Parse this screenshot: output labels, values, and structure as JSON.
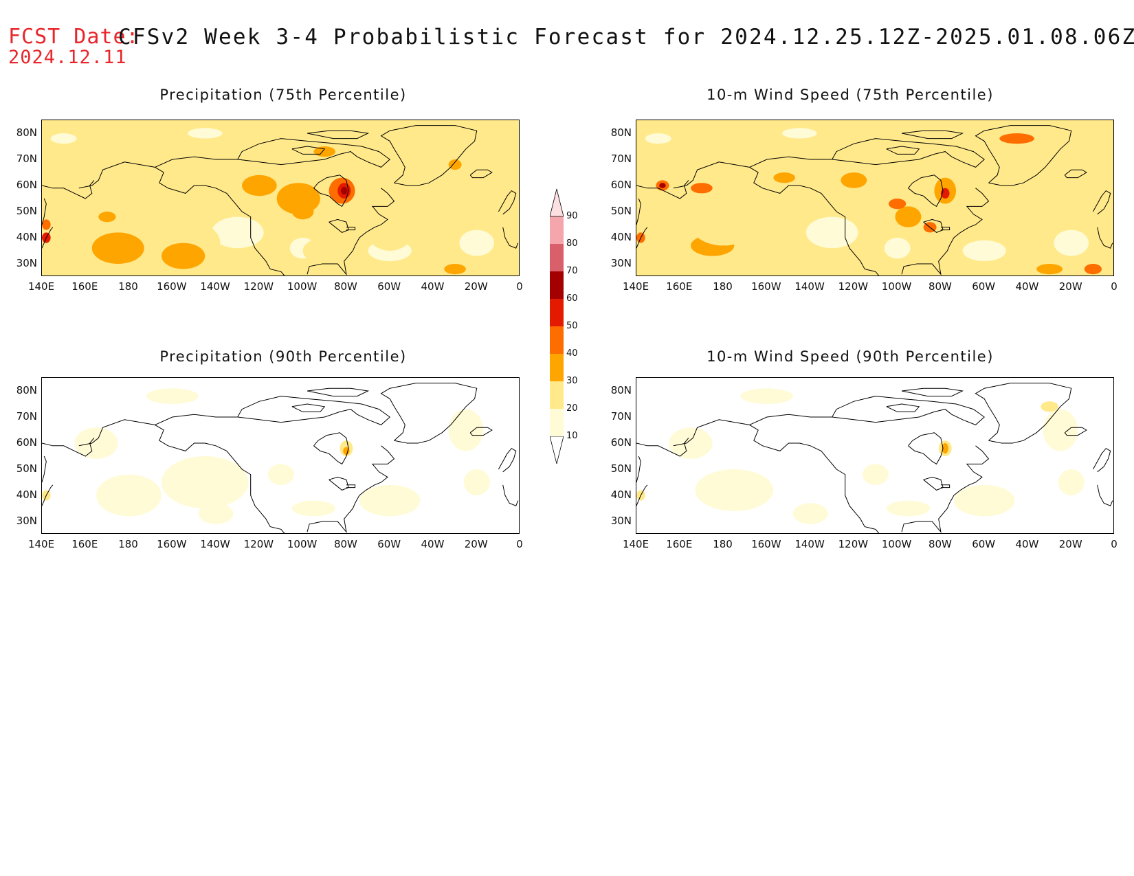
{
  "header": {
    "fcst_label": "FCST Date:",
    "fcst_date": "2024.12.11",
    "title": "CFSv2 Week 3-4 Probabilistic Forecast for 2024.12.25.12Z-2025.01.08.06Z"
  },
  "panels": [
    {
      "id": "precip75",
      "title": "Precipitation (75th Percentile)",
      "intensity": "high"
    },
    {
      "id": "wind75",
      "title": "10-m Wind Speed (75th Percentile)",
      "intensity": "high"
    },
    {
      "id": "precip90",
      "title": "Precipitation (90th Percentile)",
      "intensity": "low"
    },
    {
      "id": "wind90",
      "title": "10-m Wind Speed (90th Percentile)",
      "intensity": "low"
    }
  ],
  "lat_ticks": [
    "80N",
    "70N",
    "60N",
    "50N",
    "40N",
    "30N"
  ],
  "lon_ticks": [
    "140E",
    "160E",
    "180",
    "160W",
    "140W",
    "120W",
    "100W",
    "80W",
    "60W",
    "40W",
    "20W",
    "0"
  ],
  "colorbar": {
    "levels": [
      "10",
      "20",
      "30",
      "40",
      "50",
      "60",
      "70",
      "80",
      "90"
    ],
    "colors": [
      "#fffbd6",
      "#ffe98a",
      "#ffa500",
      "#fe6d00",
      "#e41a00",
      "#a40000",
      "#d9606a",
      "#f4a6ac"
    ]
  }
}
